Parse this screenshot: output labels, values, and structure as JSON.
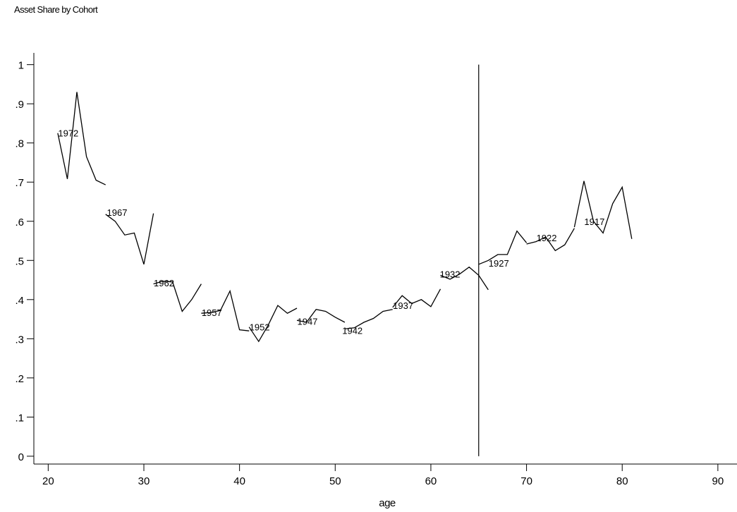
{
  "chart_data": {
    "type": "line",
    "title": "Asset Share by Cohort",
    "xlabel": "age",
    "ylabel": "",
    "xlim": [
      18.5,
      92
    ],
    "ylim": [
      -0.02,
      1.03
    ],
    "xticks": [
      20,
      30,
      40,
      50,
      60,
      70,
      80,
      90
    ],
    "yticks": [
      {
        "value": 0,
        "label": "0"
      },
      {
        "value": 0.1,
        "label": ".1"
      },
      {
        "value": 0.2,
        "label": ".2"
      },
      {
        "value": 0.3,
        "label": ".3"
      },
      {
        "value": 0.4,
        "label": ".4"
      },
      {
        "value": 0.5,
        "label": ".5"
      },
      {
        "value": 0.6,
        "label": ".6"
      },
      {
        "value": 0.7,
        "label": ".7"
      },
      {
        "value": 0.8,
        "label": ".8"
      },
      {
        "value": 0.9,
        "label": ".9"
      },
      {
        "value": 1,
        "label": "1"
      }
    ],
    "reference_line": {
      "x": 65,
      "y": [
        0,
        1
      ]
    },
    "grid": false,
    "series": [
      {
        "name": "1972",
        "x": [
          21,
          22,
          23,
          24,
          25,
          26
        ],
        "y": [
          0.825,
          0.708,
          0.93,
          0.765,
          0.705,
          0.693
        ]
      },
      {
        "name": "1967",
        "x": [
          26,
          27,
          28,
          29,
          30,
          31
        ],
        "y": [
          0.618,
          0.6,
          0.565,
          0.57,
          0.49,
          0.62
        ]
      },
      {
        "name": "1962",
        "x": [
          31,
          32,
          33,
          34,
          35,
          36
        ],
        "y": [
          0.44,
          0.447,
          0.445,
          0.37,
          0.4,
          0.44
        ]
      },
      {
        "name": "1957",
        "x": [
          36,
          37,
          38,
          39,
          40,
          41
        ],
        "y": [
          0.365,
          0.367,
          0.372,
          0.422,
          0.323,
          0.32
        ]
      },
      {
        "name": "1952",
        "x": [
          41,
          42,
          43,
          44,
          45,
          46
        ],
        "y": [
          0.33,
          0.293,
          0.335,
          0.385,
          0.365,
          0.378
        ]
      },
      {
        "name": "1947",
        "x": [
          46,
          47,
          48,
          49,
          50,
          51
        ],
        "y": [
          0.347,
          0.342,
          0.375,
          0.37,
          0.355,
          0.342
        ]
      },
      {
        "name": "1942",
        "x": [
          51,
          52,
          53,
          54,
          55,
          56
        ],
        "y": [
          0.325,
          0.328,
          0.342,
          0.352,
          0.37,
          0.375
        ]
      },
      {
        "name": "1937",
        "x": [
          56,
          57,
          58,
          59,
          60,
          61
        ],
        "y": [
          0.38,
          0.41,
          0.39,
          0.4,
          0.382,
          0.427
        ]
      },
      {
        "name": "1932",
        "x": [
          61,
          62,
          63,
          64,
          65,
          66
        ],
        "y": [
          0.462,
          0.452,
          0.465,
          0.483,
          0.462,
          0.425
        ]
      },
      {
        "name": "1927",
        "x": [
          65,
          66,
          67,
          68,
          69,
          70
        ],
        "y": [
          0.49,
          0.5,
          0.515,
          0.515,
          0.575,
          0.545
        ]
      },
      {
        "name": "1922",
        "x": [
          70,
          71,
          72,
          73,
          74,
          75
        ],
        "y": [
          0.542,
          0.548,
          0.56,
          0.525,
          0.54,
          0.582
        ]
      },
      {
        "name": "1917",
        "x": [
          75,
          76,
          77,
          78,
          79,
          80,
          81
        ],
        "y": [
          0.585,
          0.703,
          0.6,
          0.57,
          0.645,
          0.687,
          0.555
        ]
      }
    ],
    "series_labels": [
      {
        "text": "1972",
        "x": 22.1,
        "y": 0.826
      },
      {
        "text": "1967",
        "x": 27.2,
        "y": 0.623
      },
      {
        "text": "1962",
        "x": 32.1,
        "y": 0.443
      },
      {
        "text": "1957",
        "x": 37.1,
        "y": 0.367
      },
      {
        "text": "1952",
        "x": 42.1,
        "y": 0.33
      },
      {
        "text": "1947",
        "x": 47.1,
        "y": 0.345
      },
      {
        "text": "1942",
        "x": 51.8,
        "y": 0.321
      },
      {
        "text": "1937",
        "x": 57.1,
        "y": 0.385
      },
      {
        "text": "1932",
        "x": 62.0,
        "y": 0.465
      },
      {
        "text": "1927",
        "x": 67.1,
        "y": 0.493
      },
      {
        "text": "1922",
        "x": 72.1,
        "y": 0.558
      },
      {
        "text": "1917",
        "x": 77.1,
        "y": 0.6
      }
    ]
  }
}
